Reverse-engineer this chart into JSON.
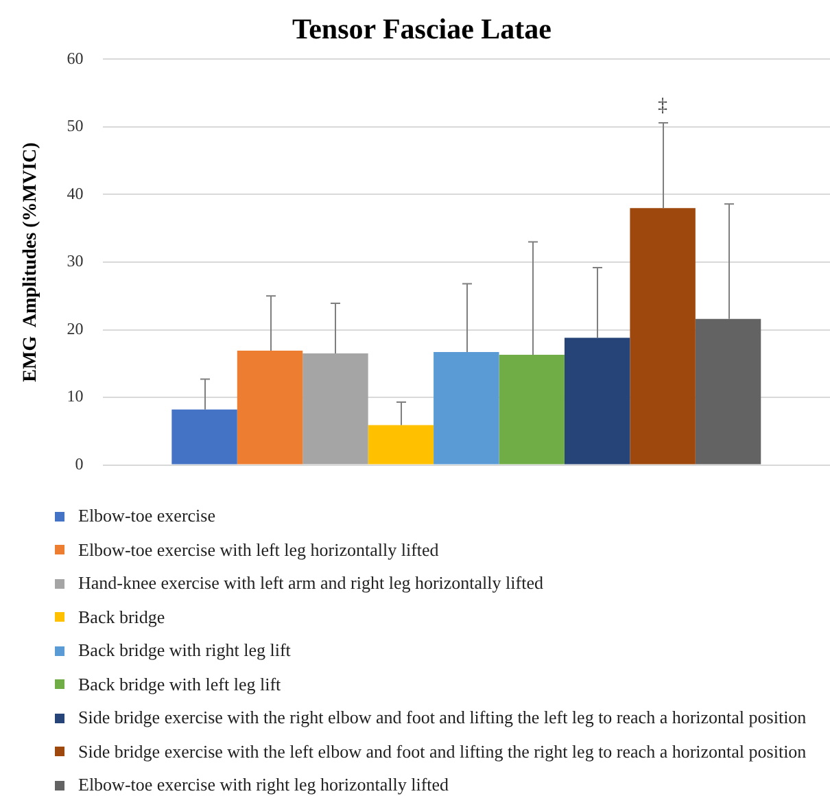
{
  "chart_data": {
    "type": "bar",
    "title": "Tensor Fasciae Latae",
    "ylabel": "EMG  Amplitudes (%MVIC)",
    "categories": [
      null
    ],
    "series": [
      {
        "name": "Elbow-toe exercise",
        "color": "#4472c4",
        "values": [
          8.2
        ],
        "errors": [
          [
            8.2,
            12.7
          ]
        ]
      },
      {
        "name": "Elbow-toe exercise with left leg horizontally lifted",
        "color": "#ed7d31",
        "values": [
          16.9
        ],
        "errors": [
          [
            16.9,
            25.0
          ]
        ]
      },
      {
        "name": "Hand-knee exercise with left arm and right leg horizontally lifted",
        "color": "#a5a5a5",
        "values": [
          16.5
        ],
        "errors": [
          [
            16.5,
            23.9
          ]
        ]
      },
      {
        "name": "Back bridge",
        "color": "#ffc000",
        "values": [
          5.9
        ],
        "errors": [
          [
            5.9,
            9.3
          ]
        ]
      },
      {
        "name": "Back bridge with right leg lift",
        "color": "#5b9bd5",
        "values": [
          16.7
        ],
        "errors": [
          [
            16.7,
            26.8
          ]
        ]
      },
      {
        "name": "Back bridge with left leg lift",
        "color": "#70ad47",
        "values": [
          16.3
        ],
        "errors": [
          [
            16.3,
            33.0
          ]
        ]
      },
      {
        "name": "Side bridge exercise with the right elbow and foot and lifting the left leg to reach a horizontal position",
        "color": "#264478",
        "values": [
          18.8
        ],
        "errors": [
          [
            18.8,
            29.2
          ]
        ]
      },
      {
        "name": "Side bridge exercise with the left elbow and foot and lifting the right leg to reach a horizontal position",
        "color": "#9e480e",
        "values": [
          38.0
        ],
        "errors": [
          [
            38.0,
            50.6
          ]
        ]
      },
      {
        "name": "Elbow-toe exercise with right leg horizontally lifted",
        "color": "#636363",
        "values": [
          21.6
        ],
        "errors": [
          [
            21.6,
            38.6
          ]
        ]
      }
    ],
    "ylim": [
      0,
      60
    ],
    "yticks": [
      0,
      10,
      20,
      30,
      40,
      50,
      60
    ],
    "grid": "y",
    "legend": "bottom",
    "annotations": [
      "‡"
    ]
  }
}
